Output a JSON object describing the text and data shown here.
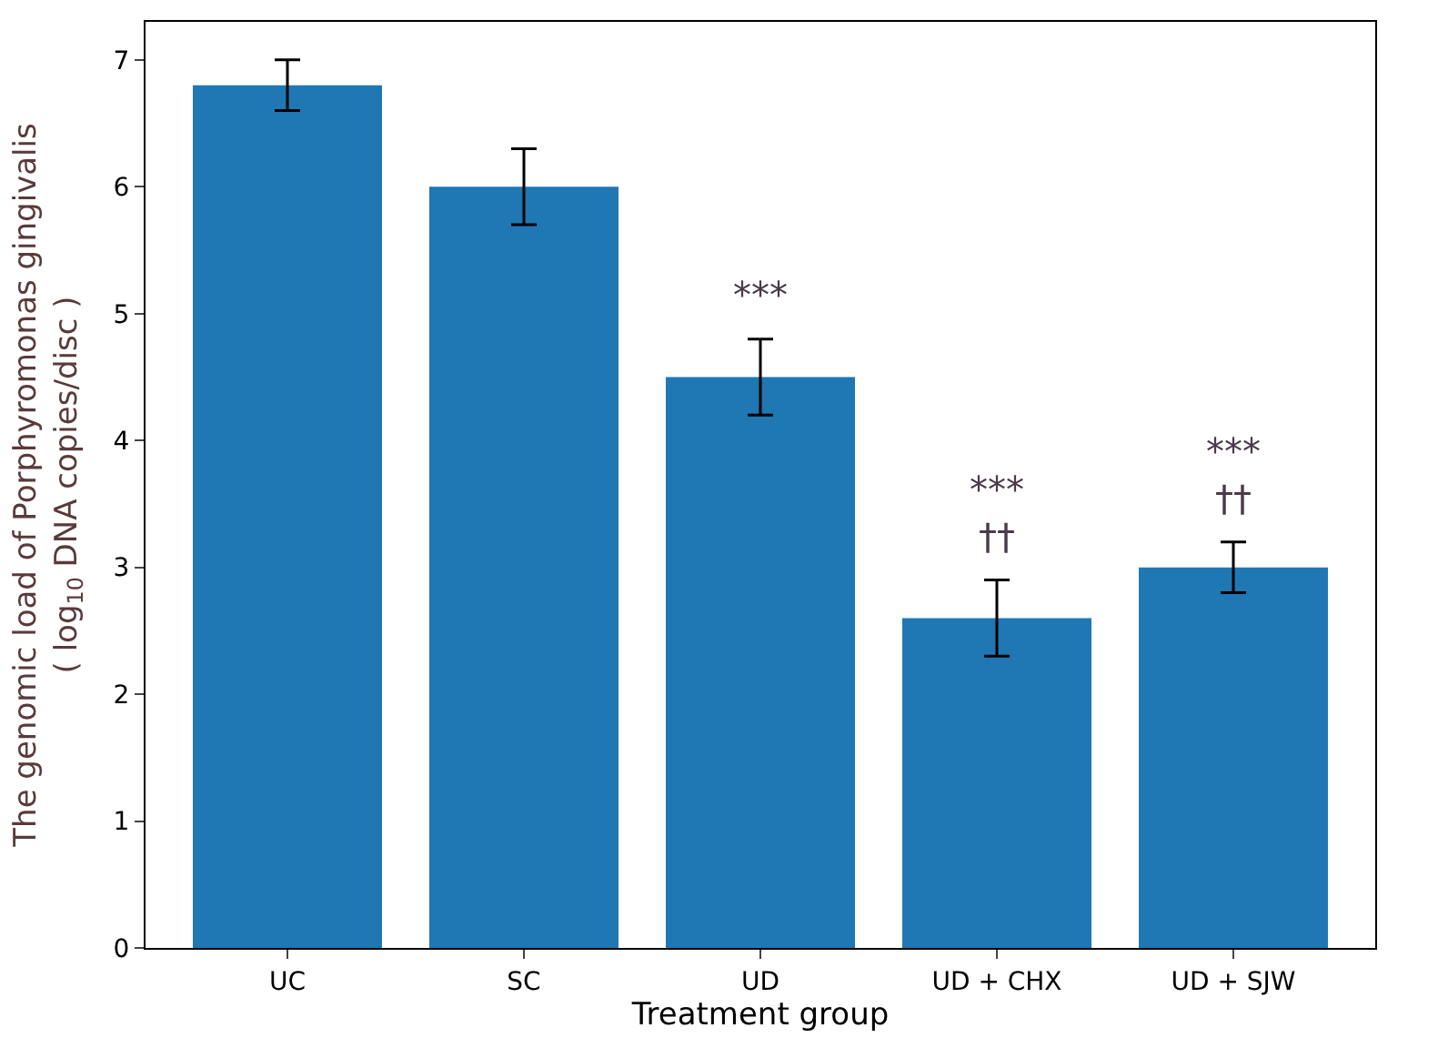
{
  "chart_data": {
    "type": "bar",
    "xlabel": "Treatment group",
    "ylabel": "The genomic load of Porphyromonas gingivalis\n( log$_{10}$ DNA copies/disc )",
    "categories": [
      "UC",
      "SC",
      "UD",
      "UD + CHX",
      "UD + SJW"
    ],
    "values": [
      6.8,
      6.0,
      4.5,
      2.6,
      3.0
    ],
    "errors": [
      0.2,
      0.3,
      0.3,
      0.3,
      0.2
    ],
    "color": "#1f77b4",
    "value_labels": [
      null,
      null,
      "***",
      "***\n††",
      "***\n††"
    ],
    "ylim": [
      0,
      7.3
    ],
    "yticks": [
      0,
      1,
      2,
      3,
      4,
      5,
      6,
      7
    ]
  }
}
